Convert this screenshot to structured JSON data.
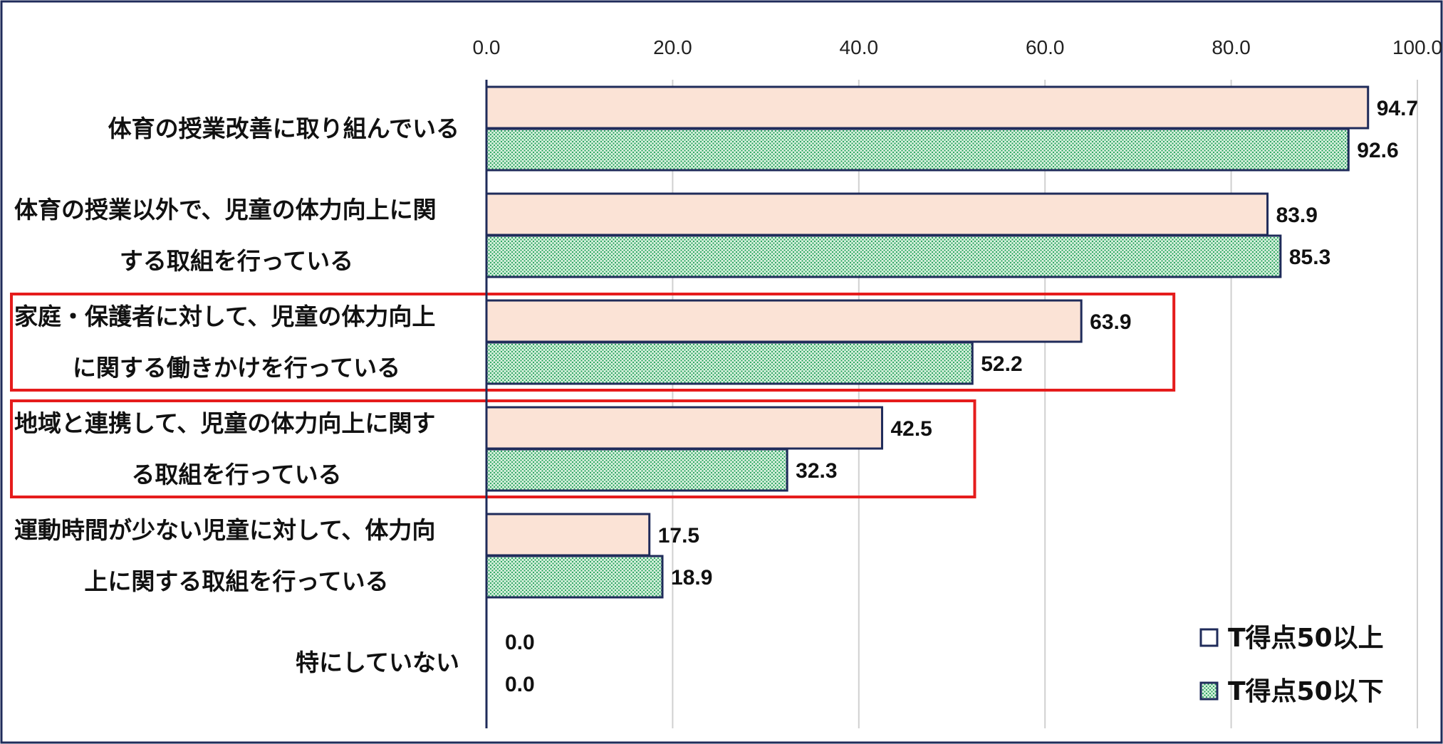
{
  "chart_data": {
    "type": "bar",
    "orientation": "horizontal",
    "categories": [
      [
        "体育の授業改善に取り組んでいる"
      ],
      [
        "体育の授業以外で、児童の体力向上に関",
        "する取組を行っている"
      ],
      [
        "家庭・保護者に対して、児童の体力向上",
        "に関する働きかけを行っている"
      ],
      [
        "地域と連携して、児童の体力向上に関す",
        "る取組を行っている"
      ],
      [
        "運動時間が少ない児童に対して、体力向",
        "上に関する取組を行っている"
      ],
      [
        "特にしていない"
      ]
    ],
    "series": [
      {
        "name": "T得点50以上",
        "values": [
          94.7,
          83.9,
          63.9,
          42.5,
          17.5,
          0.0
        ],
        "labels": [
          "94.7",
          "83.9",
          "63.9",
          "42.5",
          "17.5",
          "0.0"
        ]
      },
      {
        "name": "T得点50以下",
        "values": [
          92.6,
          85.3,
          52.2,
          32.3,
          18.9,
          0.0
        ],
        "labels": [
          "92.6",
          "85.3",
          "52.2",
          "32.3",
          "18.9",
          "0.0"
        ]
      }
    ],
    "xlim": [
      0,
      100
    ],
    "ticks": [
      0,
      20,
      40,
      60,
      80,
      100
    ],
    "tick_labels": [
      "0.0",
      "20.0",
      "40.0",
      "60.0",
      "80.0",
      "100.0"
    ],
    "grid": true,
    "legend_position": "bottom-right",
    "highlighted_categories": [
      2,
      3
    ],
    "colors": {
      "series1_fill": "#fbe3d6",
      "series2_fill": "#d6f0dc",
      "series2_dots": "#21a05a",
      "bar_border": "#1f2b5a",
      "highlight": "#e51c1c",
      "frame": "#1f2b5a",
      "grid": "#d0d0d0"
    }
  }
}
